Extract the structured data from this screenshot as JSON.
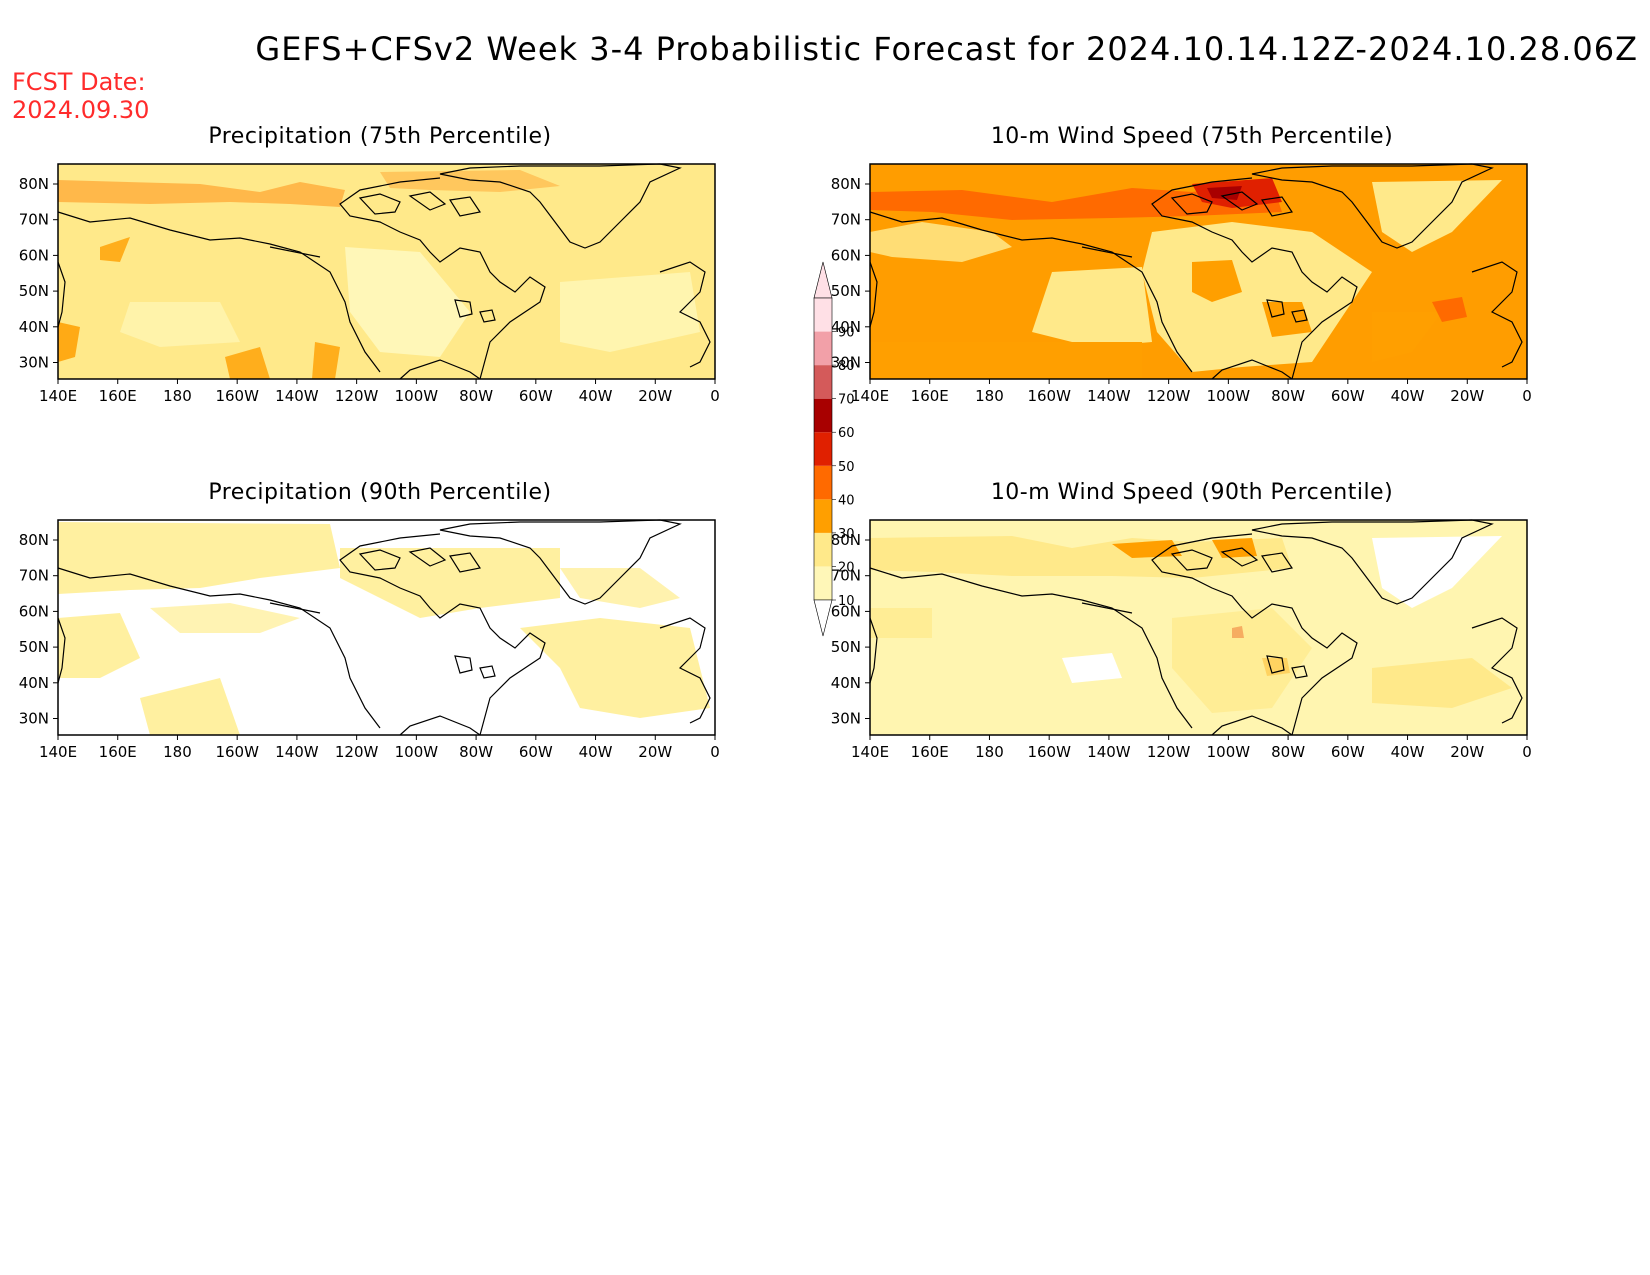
{
  "main_title": "GEFS+CFSv2 Week 3-4 Probabilistic Forecast for 2024.10.14.12Z-2024.10.28.06Z",
  "fcst_date": {
    "label": "FCST Date:",
    "value": "2024.09.30"
  },
  "lon_ticks": [
    "140E",
    "160E",
    "180",
    "160W",
    "140W",
    "120W",
    "100W",
    "80W",
    "60W",
    "40W",
    "20W",
    "0"
  ],
  "lat_ticks": [
    "80N",
    "70N",
    "60N",
    "50N",
    "40N",
    "30N"
  ],
  "panels": [
    {
      "id": "precip75",
      "title": "Precipitation (75th Percentile)",
      "base_color": "#ffe98a"
    },
    {
      "id": "wind75",
      "title": "10-m Wind Speed (75th Percentile)",
      "base_color": "#ff9d00"
    },
    {
      "id": "precip90",
      "title": "Precipitation (90th Percentile)",
      "base_color": "#ffffff"
    },
    {
      "id": "wind90",
      "title": "10-m Wind Speed (90th Percentile)",
      "base_color": "#fff5b0"
    }
  ],
  "colorbar": {
    "levels": [
      "10",
      "20",
      "30",
      "40",
      "50",
      "60",
      "70",
      "80",
      "90"
    ],
    "colors": [
      "#fff7b8",
      "#ffe98a",
      "#ff9f00",
      "#ff6a00",
      "#e02000",
      "#a80000",
      "#d45a5a",
      "#f2a0a8",
      "#ffe0e6"
    ]
  }
}
